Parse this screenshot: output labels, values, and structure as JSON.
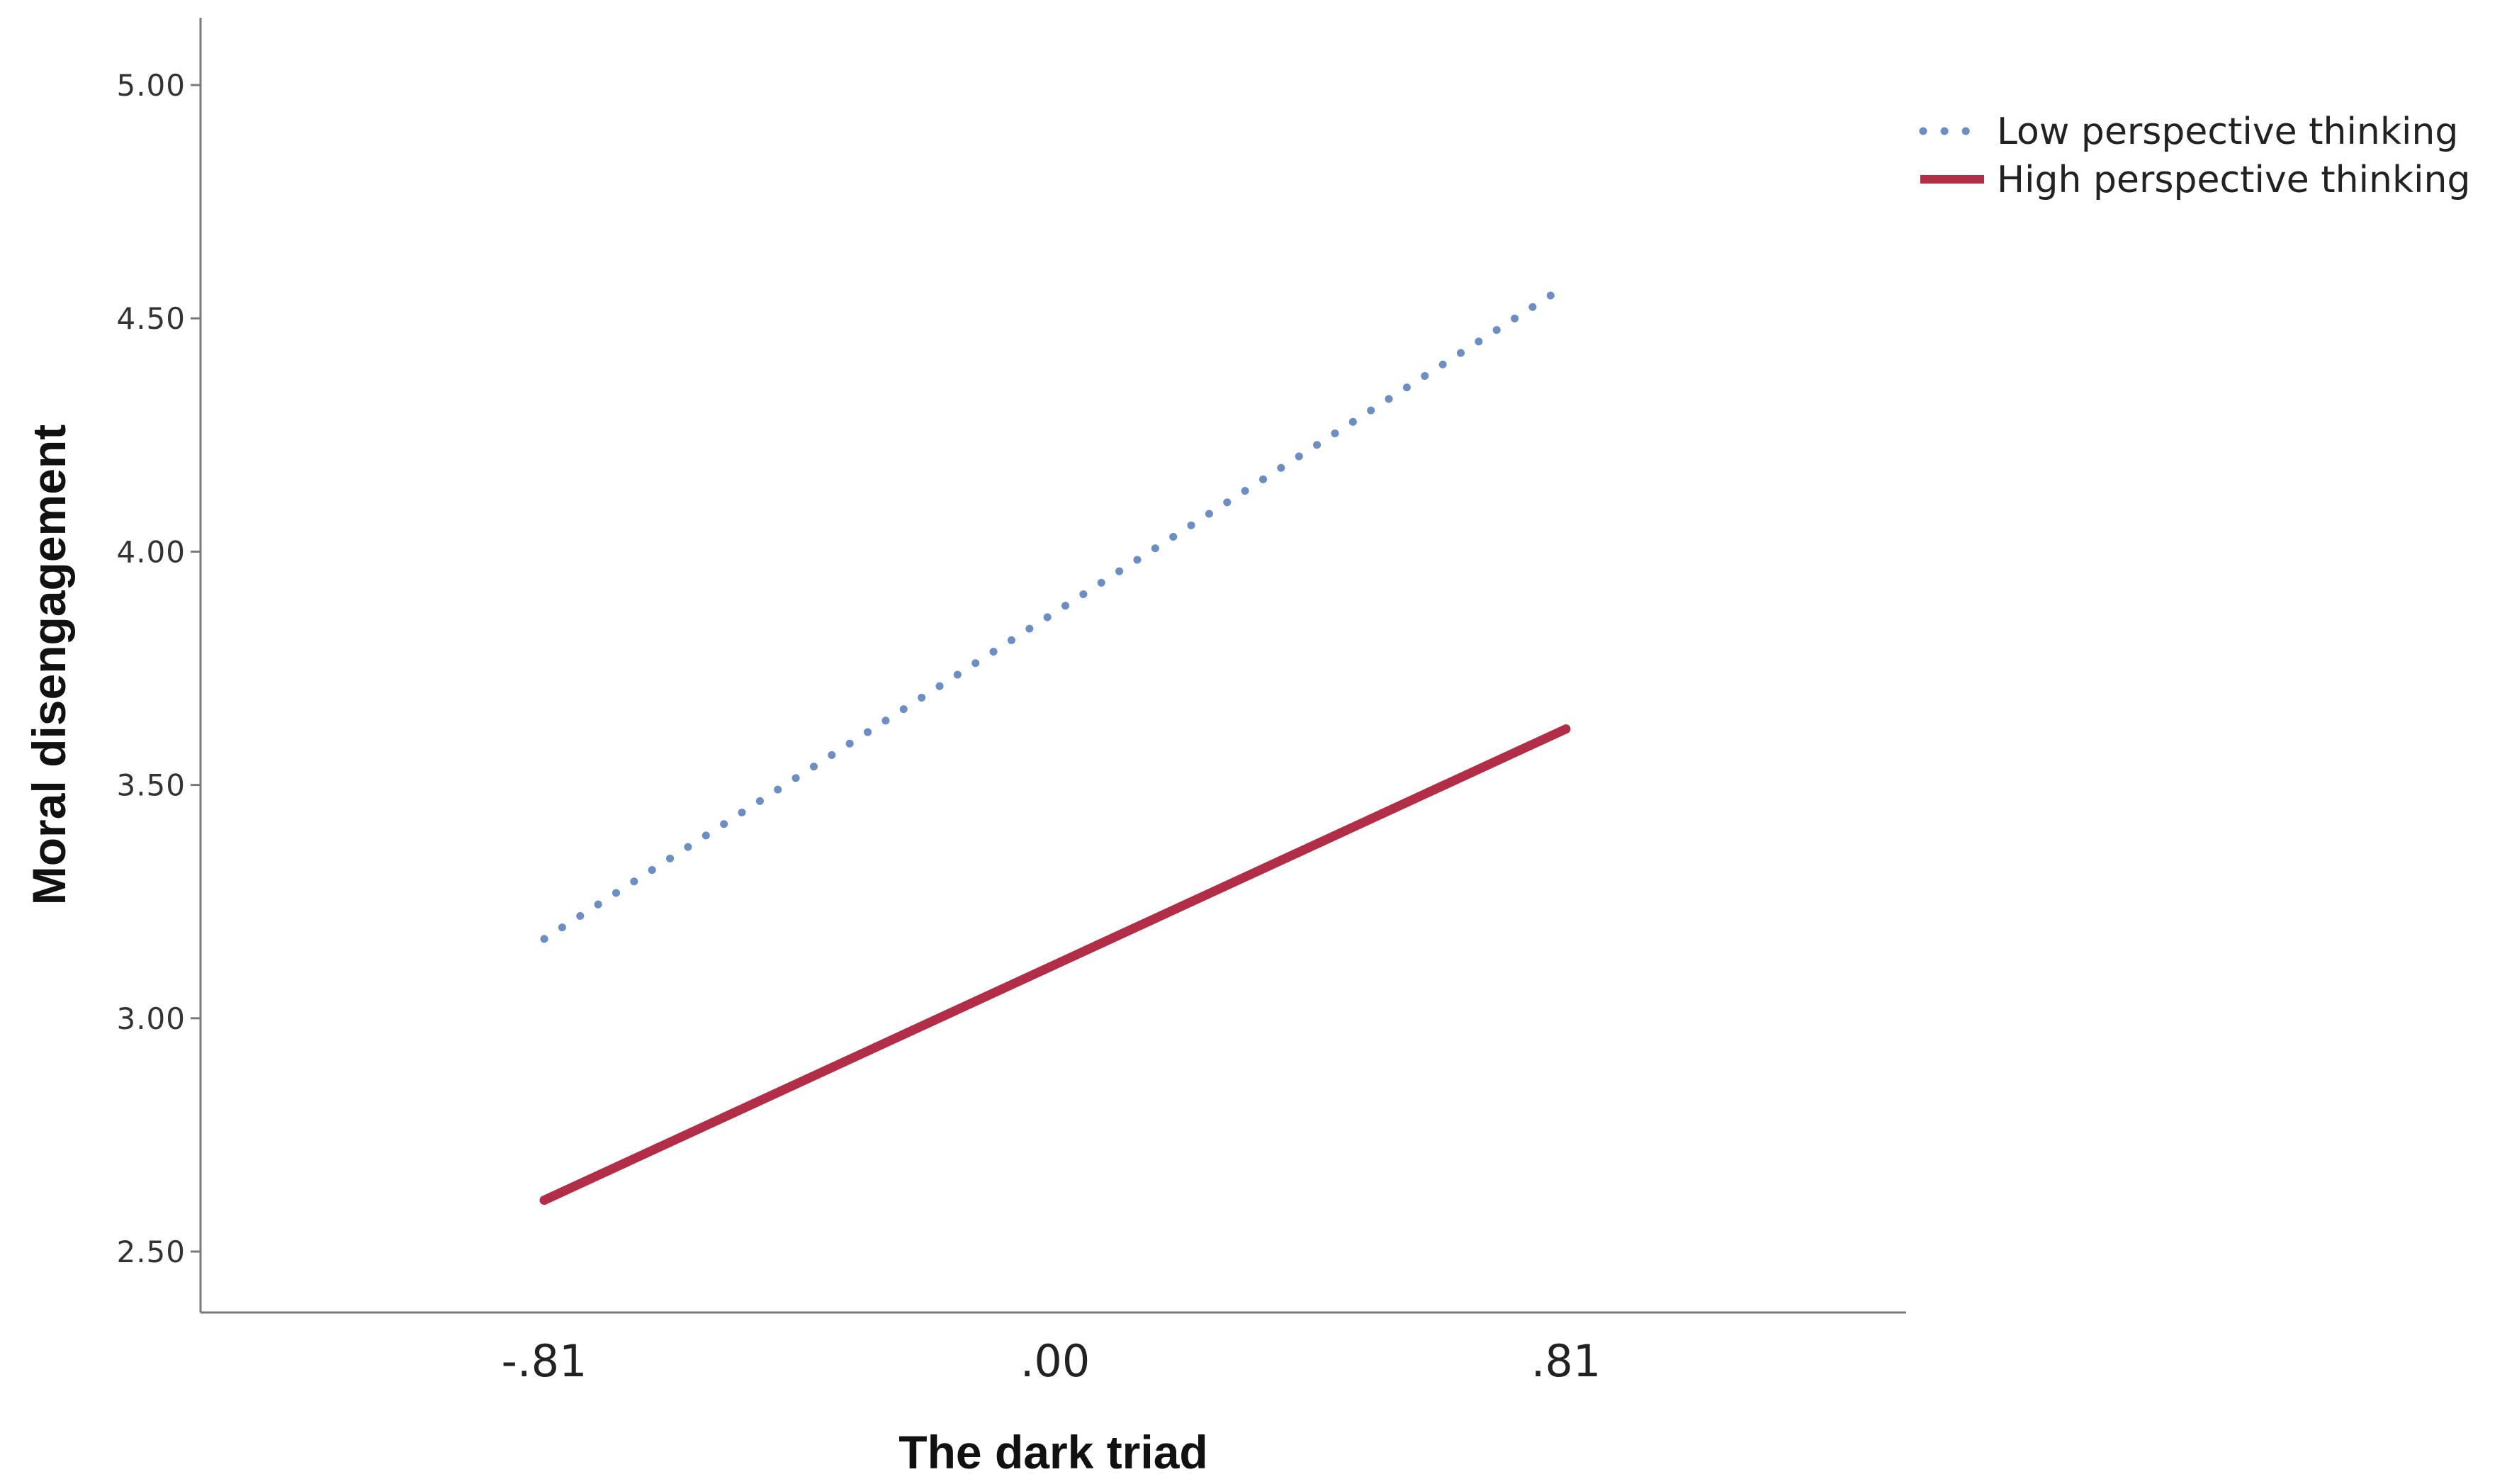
{
  "chart_data": {
    "type": "line",
    "xlabel": "The dark triad",
    "ylabel": "Moral disengagement",
    "categories": [
      "-.81",
      ".00",
      ".81"
    ],
    "x": [
      -0.81,
      0.81
    ],
    "yticks": [
      "2.50",
      "3.00",
      "3.50",
      "4.00",
      "4.50",
      "5.00"
    ],
    "ylim": [
      2.5,
      5.0
    ],
    "grid": false,
    "legend_position": "top-right",
    "series": [
      {
        "name": "Low perspective thinking",
        "style": "dotted",
        "color": "#6b8fc4",
        "y": [
          3.17,
          4.57
        ]
      },
      {
        "name": "High perspective thinking",
        "style": "solid",
        "color": "#b22d46",
        "y": [
          2.61,
          3.62
        ]
      }
    ]
  }
}
